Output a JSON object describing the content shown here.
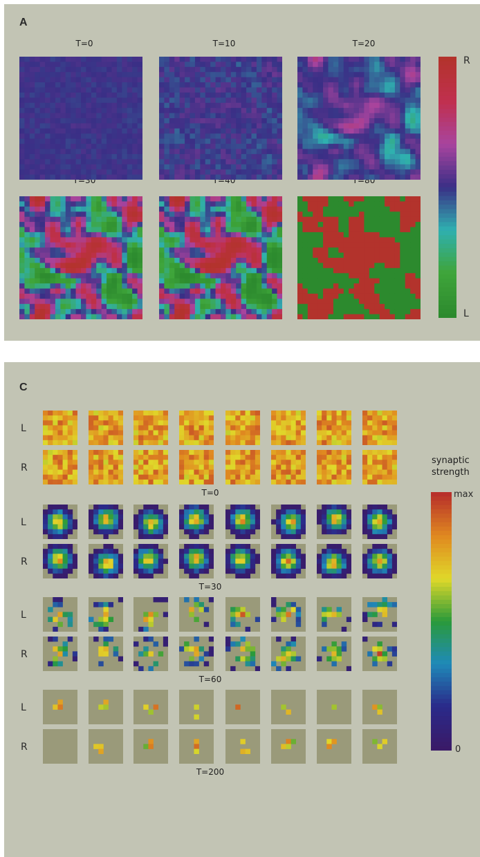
{
  "panels": {
    "a": {
      "label": "A",
      "titles": [
        "T=0",
        "T=10",
        "T=20",
        "T=30",
        "T=40",
        "T=80"
      ],
      "colorbar": {
        "top_label": "R",
        "bottom_label": "L"
      }
    },
    "c": {
      "label": "C",
      "row_labels": {
        "left": "L",
        "right": "R"
      },
      "time_labels": [
        "T=0",
        "T=30",
        "T=60",
        "T=200"
      ],
      "colorbar": {
        "title_line1": "synaptic",
        "title_line2": "strength",
        "max_label": "max",
        "min_label": "0"
      }
    }
  },
  "colors": {
    "background": "#c2c4b4",
    "panel_a_scale": [
      "#2c8a2e",
      "#3fa53a",
      "#2fb0b0",
      "#3a2f86",
      "#a8449e",
      "#c0304f",
      "#b3332c"
    ],
    "panel_c_scale": [
      "#3a1a68",
      "#2a2a8a",
      "#1f8ab8",
      "#2a9a3a",
      "#e0d82a",
      "#e08a20",
      "#b8302a"
    ]
  }
}
